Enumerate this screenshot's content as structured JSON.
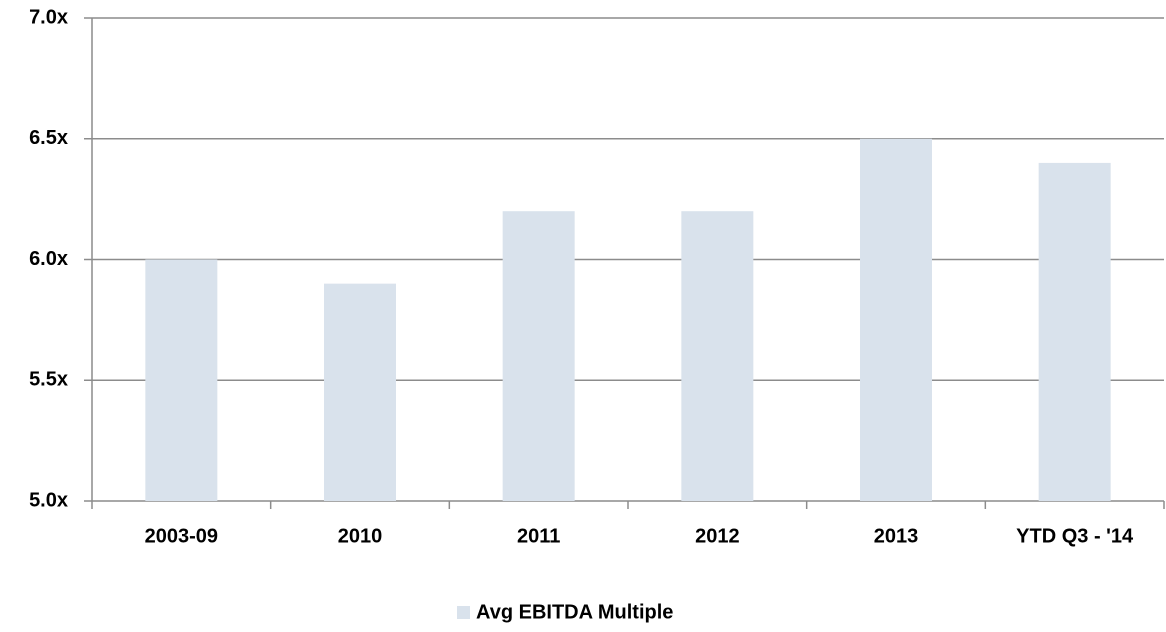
{
  "chart_data": {
    "type": "bar",
    "categories": [
      "2003-09",
      "2010",
      "2011",
      "2012",
      "2013",
      "YTD Q3 - '14"
    ],
    "series": [
      {
        "name": "Avg EBITDA Multiple",
        "color": "#d9e2ec",
        "values": [
          6.0,
          5.9,
          6.2,
          6.2,
          6.5,
          6.4
        ]
      }
    ],
    "ylim": [
      5.0,
      7.0
    ],
    "yticks": [
      {
        "value": 5.0,
        "label": "5.0x"
      },
      {
        "value": 5.5,
        "label": "5.5x"
      },
      {
        "value": 6.0,
        "label": "6.0x"
      },
      {
        "value": 6.5,
        "label": "6.5x"
      },
      {
        "value": 7.0,
        "label": "7.0x"
      }
    ],
    "grid": true,
    "legend": "bottom"
  }
}
